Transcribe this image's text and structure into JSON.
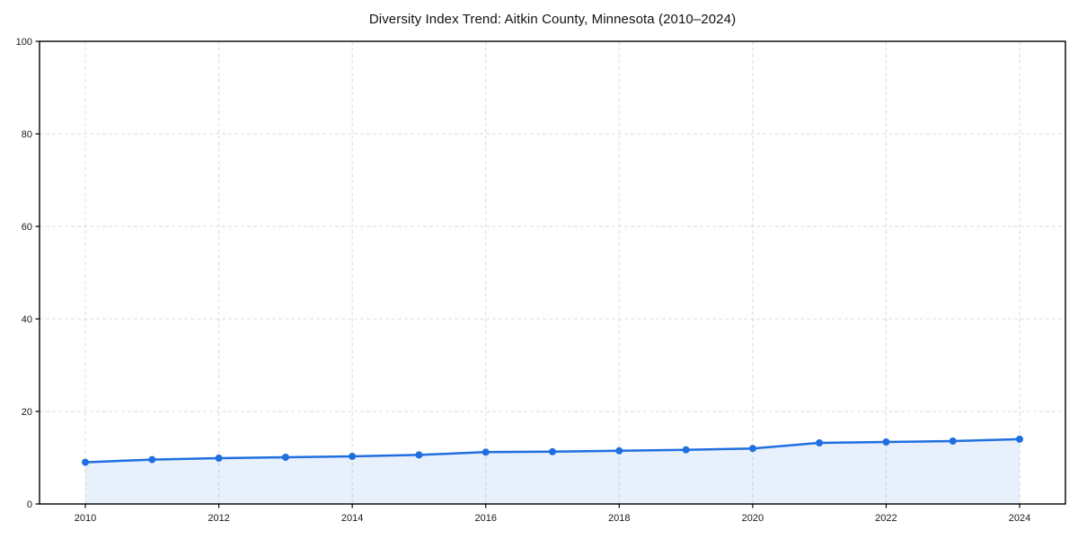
{
  "page": {
    "background_color": "#ffffff"
  },
  "chart_data": {
    "type": "line",
    "title": "Diversity Index Trend: Aitkin County, Minnesota (2010–2024)",
    "xlabel": "",
    "ylabel": "",
    "x": [
      2010,
      2011,
      2012,
      2013,
      2014,
      2015,
      2016,
      2017,
      2018,
      2019,
      2020,
      2021,
      2022,
      2023,
      2024
    ],
    "series": [
      {
        "name": "Diversity Index",
        "values": [
          9.0,
          9.6,
          9.9,
          10.1,
          10.3,
          10.6,
          11.2,
          11.3,
          11.5,
          11.7,
          12.0,
          13.2,
          13.4,
          13.6,
          14.0
        ]
      }
    ],
    "ylim": [
      0,
      100
    ],
    "yticks": [
      0,
      20,
      40,
      60,
      80,
      100
    ],
    "xticks": [
      2010,
      2012,
      2014,
      2016,
      2018,
      2020,
      2022,
      2024
    ],
    "grid": true,
    "grid_style": "dashed",
    "legend_position": "none",
    "area_fill": true,
    "marker": "circle",
    "colors": {
      "line": "#1f6fe0",
      "marker": "#1f6fe0",
      "fill": "rgba(31,111,224,0.10)",
      "grid": "#dcdcdc",
      "axis": "#000000",
      "tick_label": "#1a1a1a",
      "title": "#111111"
    }
  }
}
